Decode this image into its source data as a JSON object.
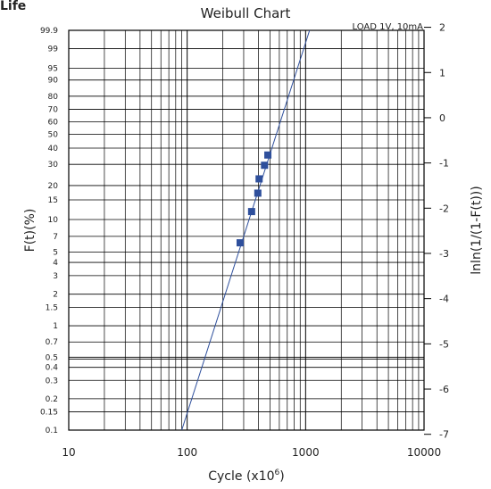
{
  "header_text": "Life",
  "chart_data": {
    "type": "scatter",
    "title": "Weibull Chart",
    "annotation": "LOAD 1V, 10mA",
    "xlabel": "Cycle (x10",
    "xlabel_superscript": "6",
    "xlabel_suffix": ")",
    "ylabel_left": "F(t)(%)",
    "ylabel_right": "lnln(1/(1-F(t)))",
    "x_scale": "log",
    "xlim": [
      10,
      10000
    ],
    "x_tick_labels": [
      "10",
      "100",
      "1000",
      "10000"
    ],
    "y_left_scale": "weibull-probability",
    "y_left_tick_labels": [
      "99.9",
      "99",
      "95",
      "90",
      "80",
      "70",
      "60",
      "50",
      "40",
      "30",
      "20",
      "15",
      "10",
      "7",
      "5",
      "4",
      "3",
      "2",
      "1.5",
      "1",
      "0.7",
      "0.5",
      "0.4",
      "0.3",
      "0.2",
      "0.15",
      "0.1"
    ],
    "y_right_tick_labels": [
      "2",
      "1",
      "0",
      "-1",
      "-2",
      "-3",
      "-4",
      "-5",
      "-6",
      "-7"
    ],
    "grid": true,
    "series": [
      {
        "type": "scatter",
        "x": [
          280,
          350,
          395,
          405,
          450,
          480
        ],
        "y": [
          6.1,
          11.8,
          17.2,
          22.8,
          29.5,
          35.5
        ]
      },
      {
        "type": "line",
        "x": [
          90,
          1080
        ],
        "y": [
          0.1,
          99.9
        ]
      }
    ],
    "colors": {
      "marker": "#2e4f9c",
      "line": "#2e4f9c",
      "grid": "#000000",
      "frame": "#000000"
    }
  }
}
